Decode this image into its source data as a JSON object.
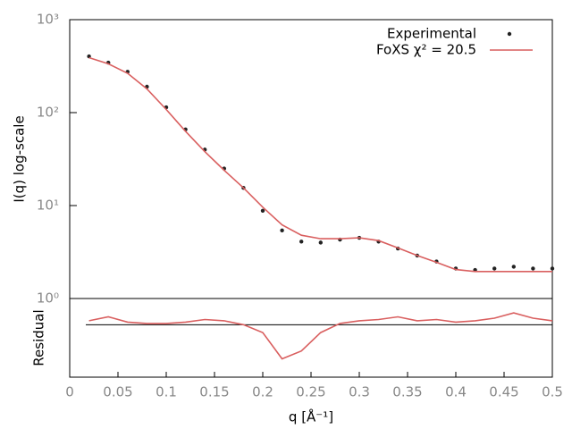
{
  "chart_data": [
    {
      "type": "line",
      "ylabel": "I(q) log-scale",
      "x": [
        0.02,
        0.04,
        0.06,
        0.08,
        0.1,
        0.12,
        0.14,
        0.16,
        0.18,
        0.2,
        0.22,
        0.24,
        0.26,
        0.28,
        0.3,
        0.32,
        0.34,
        0.36,
        0.38,
        0.4,
        0.42,
        0.44,
        0.46,
        0.48,
        0.5
      ],
      "xlim": [
        0,
        0.5
      ],
      "ylim": [
        1,
        1000
      ],
      "log_y": true,
      "yticks": [
        {
          "value": 1,
          "label": "10⁰"
        },
        {
          "value": 10,
          "label": "10¹"
        },
        {
          "value": 100,
          "label": "10²"
        },
        {
          "value": 1000,
          "label": "10³"
        }
      ],
      "legend": "upper right",
      "series": [
        {
          "name": "Experimental",
          "color": "#222222",
          "style": "points",
          "values": [
            403,
            345,
            275,
            190,
            114,
            66,
            40,
            25,
            15.5,
            8.8,
            5.4,
            4.1,
            4.0,
            4.3,
            4.5,
            4.1,
            3.45,
            2.9,
            2.5,
            2.1,
            2.03,
            2.1,
            2.2,
            2.1,
            2.1
          ]
        },
        {
          "name": "FoXS χ² = 20.5",
          "color": "#d95f5f",
          "style": "line",
          "values": [
            390,
            335,
            265,
            180,
            108,
            63,
            38,
            24,
            15.5,
            9.6,
            6.2,
            4.8,
            4.4,
            4.4,
            4.5,
            4.2,
            3.5,
            2.9,
            2.45,
            2.05,
            1.95,
            1.95,
            1.95,
            1.95,
            1.95
          ]
        }
      ]
    },
    {
      "type": "line",
      "ylabel": "Residual",
      "xlabel": "q [Å⁻¹]",
      "x": [
        0.02,
        0.04,
        0.06,
        0.08,
        0.1,
        0.12,
        0.14,
        0.16,
        0.18,
        0.2,
        0.22,
        0.24,
        0.26,
        0.28,
        0.3,
        0.32,
        0.34,
        0.36,
        0.38,
        0.4,
        0.42,
        0.44,
        0.46,
        0.48,
        0.5
      ],
      "xlim": [
        0,
        0.5
      ],
      "xticks": [
        0,
        0.05,
        0.1,
        0.15,
        0.2,
        0.25,
        0.3,
        0.35,
        0.4,
        0.45,
        0.5
      ],
      "ylim": [
        -4,
        2
      ],
      "series": [
        {
          "color": "#d95f5f",
          "style": "line",
          "values": [
            0.3,
            0.6,
            0.2,
            0.1,
            0.1,
            0.2,
            0.4,
            0.3,
            0.0,
            -0.6,
            -2.6,
            -2.0,
            -0.6,
            0.1,
            0.3,
            0.4,
            0.6,
            0.3,
            0.4,
            0.2,
            0.3,
            0.5,
            0.9,
            0.5,
            0.3
          ]
        }
      ]
    }
  ]
}
